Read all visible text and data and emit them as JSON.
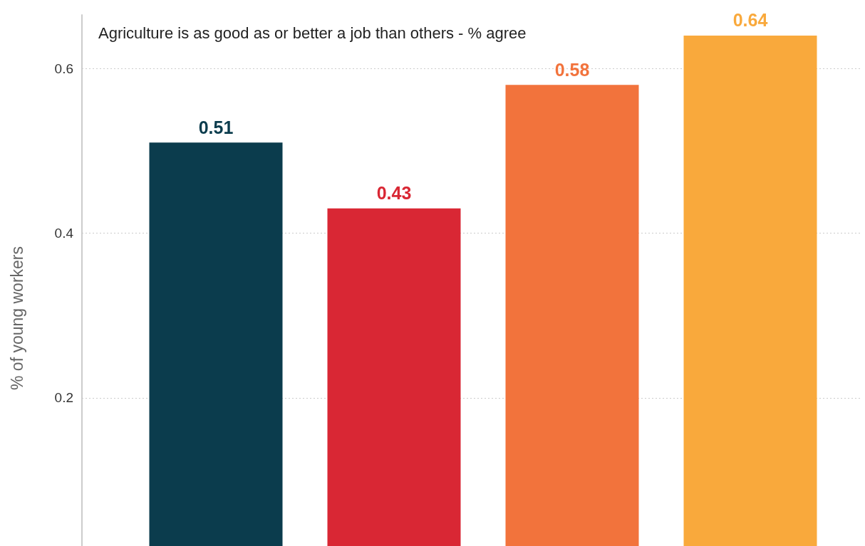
{
  "chart_data": {
    "type": "bar",
    "title": "Agriculture is as good as or better a job than others - % agree",
    "ylabel": "% of young workers",
    "categories": [
      null,
      null,
      null,
      null
    ],
    "values": [
      0.51,
      0.43,
      0.58,
      0.64
    ],
    "colors": [
      "#0b3c4d",
      "#d92734",
      "#f2733c",
      "#f9a93c"
    ],
    "ylim": [
      0.02,
      0.665
    ],
    "yticks": [
      0.2,
      0.4,
      0.6
    ],
    "grid": "y",
    "data_labels": true,
    "tick_labels": "y"
  }
}
